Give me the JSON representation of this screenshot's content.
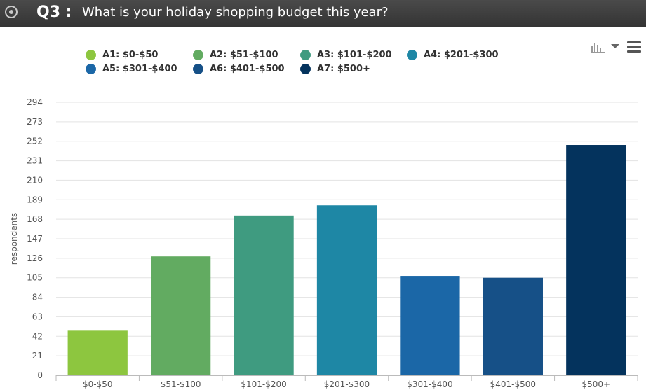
{
  "header": {
    "question_number": "Q3 :",
    "question_text": "What is your holiday shopping budget this year?"
  },
  "legend": {
    "items": [
      {
        "label": "A1: $0-$50",
        "color": "#8dc63f"
      },
      {
        "label": "A2: $51-$100",
        "color": "#62ab61"
      },
      {
        "label": "A3: $101-$200",
        "color": "#3f9b80"
      },
      {
        "label": "A4: $201-$300",
        "color": "#1e87a5"
      },
      {
        "label": "A5: $301-$400",
        "color": "#1b67a7"
      },
      {
        "label": "A6: $401-$500",
        "color": "#165087"
      },
      {
        "label": "A7: $500+",
        "color": "#04335d"
      }
    ]
  },
  "toolbar": {
    "icons": [
      "bar-chart-icon",
      "dropdown-caret-icon",
      "hamburger-menu-icon"
    ]
  },
  "chart_data": {
    "type": "bar",
    "categories": [
      "$0-$50",
      "$51-$100",
      "$101-$200",
      "$201-$300",
      "$301-$400",
      "$401-$500",
      "$500+"
    ],
    "values": [
      48,
      128,
      172,
      183,
      107,
      105,
      248
    ],
    "colors": [
      "#8dc63f",
      "#62ab61",
      "#3f9b80",
      "#1e87a5",
      "#1b67a7",
      "#165087",
      "#04335d"
    ],
    "ylabel": "respondents",
    "xlabel": "",
    "ylim": [
      0,
      294
    ],
    "yticks": [
      0,
      21,
      42,
      63,
      84,
      105,
      126,
      147,
      168,
      189,
      210,
      231,
      252,
      273,
      294
    ],
    "grid": true,
    "legend_position": "top"
  }
}
